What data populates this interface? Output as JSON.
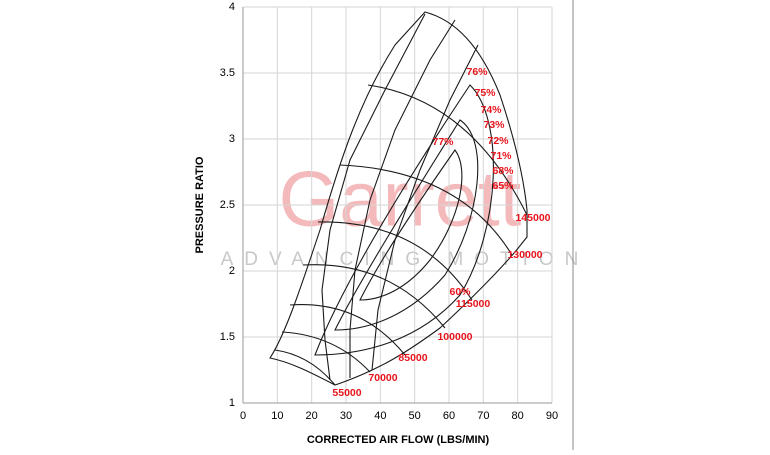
{
  "chart_data": {
    "type": "compressor-map",
    "xlabel": "CORRECTED AIR FLOW (LBS/MIN)",
    "ylabel": "PRESSURE RATIO",
    "xlim": [
      0,
      90
    ],
    "xticks": [
      0,
      10,
      20,
      30,
      40,
      50,
      60,
      70,
      80,
      90
    ],
    "ylim": [
      1,
      4
    ],
    "yticks": [
      1,
      1.5,
      2,
      2.5,
      3,
      3.5,
      4
    ],
    "grid": true,
    "speed_lines": [
      "55000",
      "70000",
      "85000",
      "100000",
      "115000",
      "130000",
      "145000"
    ],
    "efficiency_labels": [
      "77%",
      "76%",
      "75%",
      "74%",
      "73%",
      "72%",
      "71%",
      "68%",
      "65%",
      "60%"
    ],
    "watermark": [
      "Garrett",
      "ADVANCING MOTION"
    ],
    "label_color": "#e8141c"
  }
}
